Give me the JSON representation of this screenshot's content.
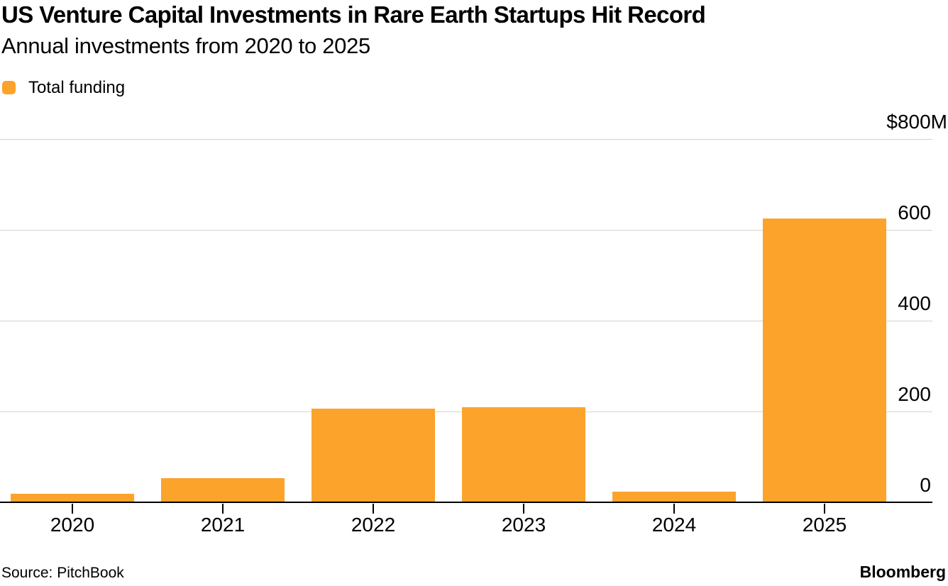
{
  "header": {
    "title": "US Venture Capital Investments in Rare Earth Startups Hit Record",
    "subtitle": "Annual investments from 2020 to 2025"
  },
  "legend": {
    "items": [
      {
        "label": "Total funding",
        "color": "#FCA32C"
      }
    ]
  },
  "chart_data": {
    "type": "bar",
    "title": "US Venture Capital Investments in Rare Earth Startups Hit Record",
    "subtitle": "Annual investments from 2020 to 2025",
    "categories": [
      "2020",
      "2021",
      "2022",
      "2023",
      "2024",
      "2025"
    ],
    "series": [
      {
        "name": "Total funding",
        "color": "#FCA32C",
        "values": [
          19,
          53,
          207,
          210,
          23,
          625
        ]
      }
    ],
    "unit": "$M",
    "ylim": [
      0,
      800
    ],
    "yticks": [
      {
        "value": 800,
        "label": "$800M"
      },
      {
        "value": 600,
        "label": "600"
      },
      {
        "value": 400,
        "label": "400"
      },
      {
        "value": 200,
        "label": "200"
      },
      {
        "value": 0,
        "label": "0"
      }
    ],
    "grid": "horizontal",
    "legend_position": "top-left",
    "ytick_label_position": "right"
  },
  "footer": {
    "source": "Source: PitchBook",
    "brand": "Bloomberg"
  },
  "colors": {
    "bar": "#FCA32C",
    "grid": "#D3D3D3",
    "axis": "#000000",
    "text": "#000000",
    "background": "#FFFFFF"
  }
}
